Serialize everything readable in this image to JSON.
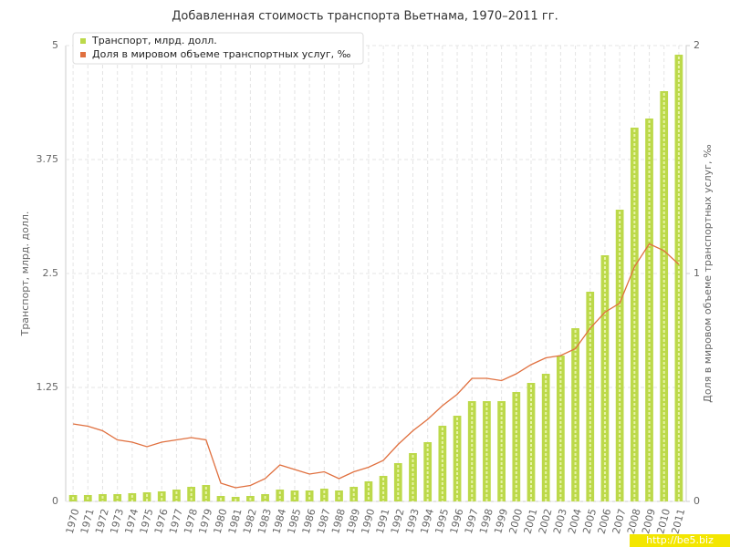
{
  "chart_data": {
    "type": "bar_line",
    "title": "Добавленная стоимость транспорта Вьетнама, 1970–2011 гг.",
    "y_label": "Транспорт, млрд. долл.",
    "y2_label": "Доля в мировом объеме транспортных услуг, ‰",
    "categories": [
      "1970",
      "1971",
      "1972",
      "1973",
      "1974",
      "1975",
      "1976",
      "1977",
      "1978",
      "1979",
      "1980",
      "1981",
      "1982",
      "1983",
      "1984",
      "1985",
      "1986",
      "1987",
      "1988",
      "1989",
      "1990",
      "1991",
      "1992",
      "1993",
      "1994",
      "1995",
      "1996",
      "1997",
      "1998",
      "1999",
      "2000",
      "2001",
      "2002",
      "2003",
      "2004",
      "2005",
      "2006",
      "2007",
      "2008",
      "2009",
      "2010",
      "2011"
    ],
    "series": [
      {
        "name": "Транспорт, млрд. долл.",
        "type": "bar",
        "color": "#bcd94a",
        "values": [
          0.07,
          0.07,
          0.08,
          0.08,
          0.09,
          0.1,
          0.11,
          0.13,
          0.16,
          0.18,
          0.06,
          0.05,
          0.06,
          0.08,
          0.13,
          0.12,
          0.12,
          0.14,
          0.12,
          0.16,
          0.22,
          0.28,
          0.42,
          0.53,
          0.65,
          0.83,
          0.94,
          1.1,
          1.1,
          1.1,
          1.2,
          1.3,
          1.4,
          1.6,
          1.9,
          2.3,
          2.7,
          3.2,
          4.1,
          4.2,
          4.5,
          4.9
        ]
      },
      {
        "name": "Доля в мировом объеме транспортных услуг, ‰",
        "type": "line",
        "axis": "y2",
        "color": "#e0703f",
        "values": [
          0.34,
          0.33,
          0.31,
          0.27,
          0.26,
          0.24,
          0.26,
          0.27,
          0.28,
          0.27,
          0.08,
          0.06,
          0.07,
          0.1,
          0.16,
          0.14,
          0.12,
          0.13,
          0.1,
          0.13,
          0.15,
          0.18,
          0.25,
          0.31,
          0.36,
          0.42,
          0.47,
          0.54,
          0.54,
          0.53,
          0.56,
          0.6,
          0.63,
          0.64,
          0.67,
          0.76,
          0.83,
          0.87,
          1.03,
          1.13,
          1.1,
          1.04
        ]
      }
    ],
    "ylim": [
      0,
      5
    ],
    "yticks": [
      0,
      1.25,
      2.5,
      3.75,
      5
    ],
    "y2lim": [
      0,
      2
    ],
    "y2ticks": [
      0,
      1,
      2
    ],
    "grid": true,
    "legend": "top-left",
    "watermark": "http://be5.biz"
  }
}
